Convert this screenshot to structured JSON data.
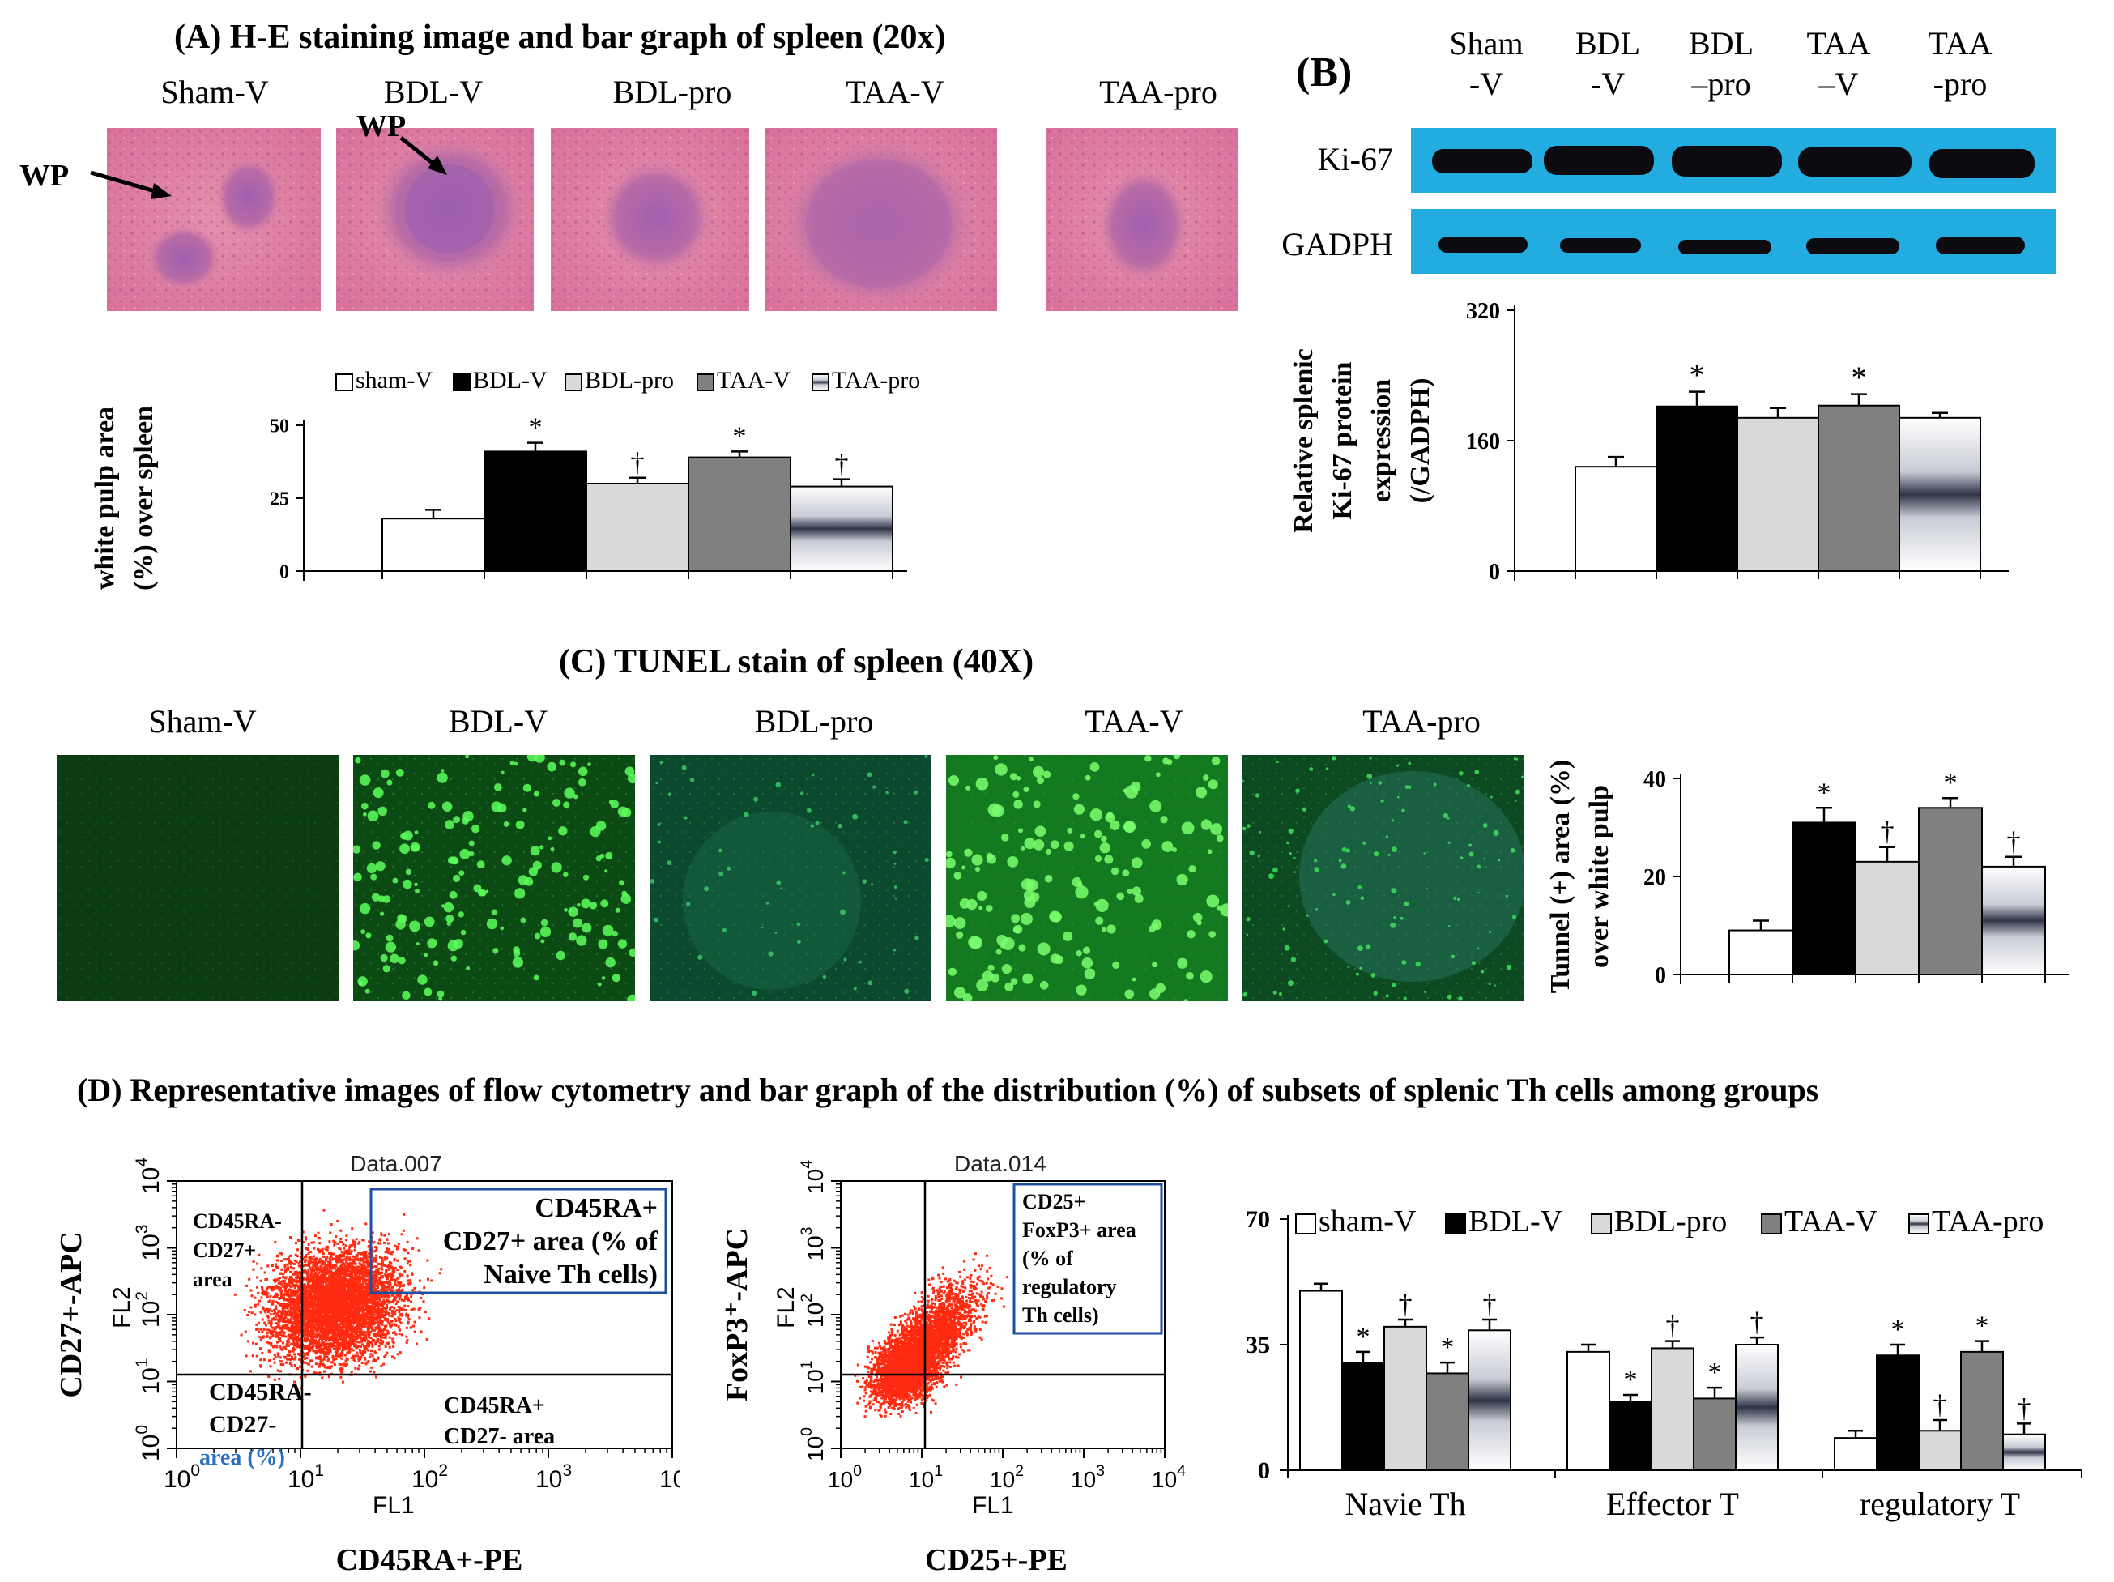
{
  "panelA": {
    "title": "(A) H-E staining  image and bar graph of spleen (20x)",
    "image_labels": [
      "Sham-V",
      "BDL-V",
      "BDL-pro",
      "TAA-V",
      "TAA-pro"
    ],
    "wp_label": "WP",
    "wp_label2": "WP"
  },
  "panelB": {
    "title": "(B)",
    "lane_labels": [
      [
        "Sham",
        "-V"
      ],
      [
        "BDL",
        "-V"
      ],
      [
        "BDL",
        "–pro"
      ],
      [
        "TAA",
        "–V"
      ],
      [
        "TAA",
        "-pro"
      ]
    ],
    "blot_labels": [
      "Ki-67",
      "GADPH"
    ]
  },
  "panelC": {
    "title": "(C) TUNEL stain of spleen (40X)",
    "image_labels": [
      "Sham-V",
      "BDL-V",
      "BDL-pro",
      "TAA-V",
      "TAA-pro"
    ]
  },
  "panelD": {
    "title": "(D) Representative images of flow cytometry and bar graph of the distribution  (%) of subsets of splenic Th cells among groups",
    "flow1": {
      "dataset": "Data.007",
      "y_label": "CD27+-APC",
      "fl_y": "FL2",
      "fl_x": "FL1",
      "x_label": "CD45RA+-PE",
      "q_ul": [
        "CD45RA-",
        "CD27+",
        "area"
      ],
      "q_ur": [
        "CD45RA+",
        "CD27+ area (% of",
        "Naive Th cells)"
      ],
      "q_ll": [
        "CD45RA-",
        "CD27-",
        "area (%)"
      ],
      "q_lr": [
        "CD45RA+",
        "CD27- area"
      ],
      "ticks": [
        "10",
        "10",
        "10",
        "10",
        "10"
      ],
      "tick_exps": [
        "0",
        "1",
        "2",
        "3",
        "4"
      ]
    },
    "flow2": {
      "dataset": "Data.014",
      "y_label": "FoxP3⁺-APC",
      "fl_y": "FL2",
      "fl_x": "FL1",
      "x_label": "CD25+-PE",
      "q_ur": [
        "CD25+",
        "FoxP3+ area",
        "(% of",
        "regulatory",
        "Th cells)"
      ],
      "ticks": [
        "10",
        "10",
        "10",
        "10",
        "10"
      ],
      "tick_exps": [
        "0",
        "1",
        "2",
        "3",
        "4"
      ]
    }
  },
  "groups": [
    "sham-V",
    "BDL-V",
    "BDL-pro",
    "TAA-V",
    "TAA-pro"
  ],
  "group_colors": [
    "#ffffff",
    "#000000",
    "#d9d9d9",
    "#808080",
    "gradient"
  ],
  "chart_data": [
    {
      "id": "white-pulp-chart",
      "type": "bar",
      "ylabel": [
        "white pulp area",
        "(%) over spleen"
      ],
      "yticks": [
        "0",
        "25",
        "50"
      ],
      "ylim": [
        0,
        50
      ],
      "categories": [
        "sham-V",
        "BDL-V",
        "BDL-pro",
        "TAA-V",
        "TAA-pro"
      ],
      "values": [
        18,
        41,
        30,
        39,
        29
      ],
      "errors": [
        3,
        3,
        2,
        2,
        2.5
      ],
      "marks": [
        "",
        "*",
        "†",
        "*",
        "†"
      ],
      "legend": [
        "sham-V",
        "BDL-V",
        "BDL-pro",
        "TAA-V",
        "TAA-pro"
      ]
    },
    {
      "id": "ki67-chart",
      "type": "bar",
      "ylabel": [
        "Relative splenic",
        "Ki-67 protein",
        "expression",
        "(/GADPH)"
      ],
      "yticks": [
        "0",
        "160",
        "320"
      ],
      "ylim": [
        0,
        320
      ],
      "categories": [
        "sham-V",
        "BDL-V",
        "BDL-pro",
        "TAA-V",
        "TAA-pro"
      ],
      "values": [
        128,
        202,
        188,
        203,
        188
      ],
      "errors": [
        12,
        18,
        12,
        14,
        6
      ],
      "marks": [
        "",
        "*",
        "",
        "*",
        ""
      ]
    },
    {
      "id": "tunel-chart",
      "type": "bar",
      "ylabel": [
        "Tunnel (+) area (%)",
        "over white pulp"
      ],
      "yticks": [
        "0",
        "20",
        "40"
      ],
      "ylim": [
        0,
        40
      ],
      "categories": [
        "sham-V",
        "BDL-V",
        "BDL-pro",
        "TAA-V",
        "TAA-pro"
      ],
      "values": [
        9,
        31,
        23,
        34,
        22
      ],
      "errors": [
        2,
        3,
        3,
        2,
        2
      ],
      "marks": [
        "",
        "*",
        "†",
        "*",
        "†"
      ]
    },
    {
      "id": "th-subsets-chart",
      "type": "bar",
      "yticks": [
        "0",
        "35",
        "70"
      ],
      "ylim": [
        0,
        70
      ],
      "categories": [
        "Navie Th",
        "Effector T",
        "regulatory T"
      ],
      "series": [
        {
          "name": "sham-V",
          "values": [
            50,
            33,
            9
          ],
          "errors": [
            2,
            2,
            2
          ],
          "marks": [
            "",
            "",
            ""
          ]
        },
        {
          "name": "BDL-V",
          "values": [
            30,
            19,
            32
          ],
          "errors": [
            3,
            2,
            3
          ],
          "marks": [
            "*",
            "*",
            "*"
          ]
        },
        {
          "name": "BDL-pro",
          "values": [
            40,
            34,
            11
          ],
          "errors": [
            2,
            2,
            3
          ],
          "marks": [
            "†",
            "†",
            "†"
          ]
        },
        {
          "name": "TAA-V",
          "values": [
            27,
            20,
            33
          ],
          "errors": [
            3,
            3,
            3
          ],
          "marks": [
            "*",
            "*",
            "*"
          ]
        },
        {
          "name": "TAA-pro",
          "values": [
            39,
            35,
            10
          ],
          "errors": [
            3,
            2,
            3
          ],
          "marks": [
            "†",
            "†",
            "†"
          ]
        }
      ],
      "legend": [
        "sham-V",
        "BDL-V",
        "BDL-pro",
        "TAA-V",
        "TAA-pro"
      ]
    }
  ]
}
